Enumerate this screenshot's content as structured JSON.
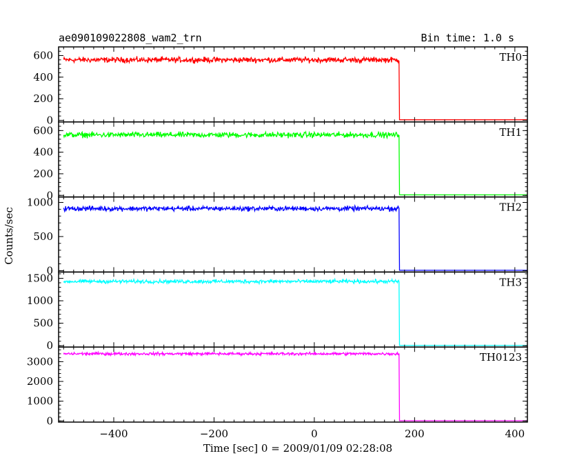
{
  "chart_data": {
    "type": "line",
    "title_left": "ae090109022808_wam2_trn",
    "title_right": "Bin time: 1.0 s",
    "xlabel": "Time [sec] 0 = 2009/01/09 02:28:08",
    "ylabel": "Counts/sec",
    "xlim": [
      -510,
      425
    ],
    "x_ticks": [
      -400,
      -200,
      0,
      200,
      400
    ],
    "panels": [
      {
        "name": "TH0",
        "color": "#ff0000",
        "ylim": [
          -15,
          680
        ],
        "y_ticks": [
          0,
          200,
          400,
          600
        ],
        "series": {
          "x_start": -500,
          "x_end": 425,
          "step_at": 170,
          "level_before": 560,
          "noise_amplitude": 25,
          "level_after": 5
        }
      },
      {
        "name": "TH1",
        "color": "#00ff00",
        "ylim": [
          -15,
          680
        ],
        "y_ticks": [
          0,
          200,
          400,
          600
        ],
        "series": {
          "x_start": -500,
          "x_end": 425,
          "step_at": 170,
          "level_before": 560,
          "noise_amplitude": 25,
          "level_after": 5
        }
      },
      {
        "name": "TH2",
        "color": "#0000ff",
        "ylim": [
          -20,
          1080
        ],
        "y_ticks": [
          0,
          500,
          1000
        ],
        "series": {
          "x_start": -500,
          "x_end": 425,
          "step_at": 170,
          "level_before": 910,
          "noise_amplitude": 35,
          "level_after": 5
        }
      },
      {
        "name": "TH3",
        "color": "#00ffff",
        "ylim": [
          -30,
          1640
        ],
        "y_ticks": [
          0,
          500,
          1000,
          1500
        ],
        "series": {
          "x_start": -500,
          "x_end": 425,
          "step_at": 170,
          "level_before": 1430,
          "noise_amplitude": 40,
          "level_after": 5
        }
      },
      {
        "name": "TH0123",
        "color": "#ff00ff",
        "ylim": [
          -60,
          3740
        ],
        "y_ticks": [
          0,
          1000,
          2000,
          3000
        ],
        "series": {
          "x_start": -500,
          "x_end": 425,
          "step_at": 170,
          "level_before": 3400,
          "noise_amplitude": 70,
          "level_after": 10
        }
      }
    ]
  }
}
